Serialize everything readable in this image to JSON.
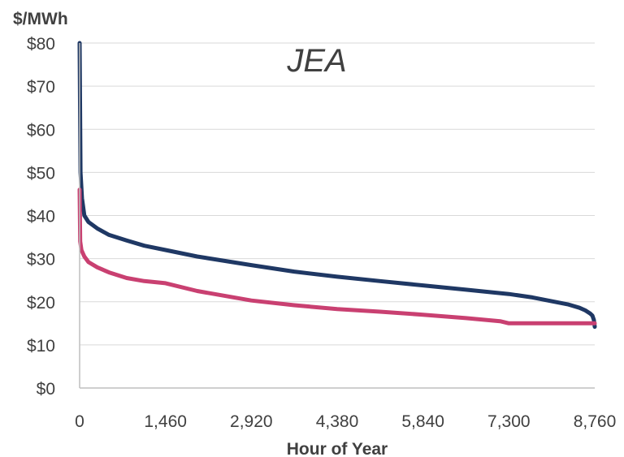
{
  "chart_data": {
    "type": "line",
    "title": "JEA",
    "ylabel": "$/MWh",
    "xlabel": "Hour of Year",
    "xlim": [
      0,
      8760
    ],
    "ylim": [
      0,
      80
    ],
    "xticks": [
      0,
      1460,
      2920,
      4380,
      5840,
      7300,
      8760
    ],
    "xtick_labels": [
      "0",
      "1,460",
      "2,920",
      "4,380",
      "5,840",
      "7,300",
      "8,760"
    ],
    "yticks": [
      0,
      10,
      20,
      30,
      40,
      50,
      60,
      70,
      80
    ],
    "ytick_labels": [
      "$0",
      "$10",
      "$20",
      "$30",
      "$40",
      "$50",
      "$60",
      "$70",
      "$80"
    ],
    "grid": true,
    "legend": "none",
    "series": [
      {
        "color": "#1f3864",
        "x": [
          0,
          15,
          40,
          80,
          150,
          300,
          500,
          800,
          1100,
          1460,
          2000,
          2920,
          3650,
          4380,
          5110,
          5840,
          6570,
          7300,
          7700,
          8000,
          8300,
          8500,
          8600,
          8680,
          8720,
          8745,
          8760
        ],
        "y": [
          80,
          50,
          44,
          40,
          38.5,
          37,
          35.5,
          34.2,
          33,
          32,
          30.5,
          28.5,
          27,
          25.8,
          24.8,
          23.8,
          22.8,
          21.8,
          21,
          20.2,
          19.4,
          18.6,
          18,
          17.3,
          16.8,
          15.8,
          14.2
        ]
      },
      {
        "color": "#c94071",
        "x": [
          0,
          10,
          30,
          80,
          150,
          300,
          500,
          800,
          1100,
          1460,
          2000,
          2920,
          3650,
          4380,
          5110,
          5840,
          6570,
          7150,
          7300,
          7500,
          8000,
          8500,
          8700,
          8760
        ],
        "y": [
          46,
          34,
          32,
          30.5,
          29.2,
          28,
          26.8,
          25.5,
          24.8,
          24.3,
          22.5,
          20.3,
          19.2,
          18.3,
          17.7,
          17,
          16.2,
          15.5,
          15,
          15,
          15,
          15,
          15,
          15
        ]
      }
    ]
  }
}
